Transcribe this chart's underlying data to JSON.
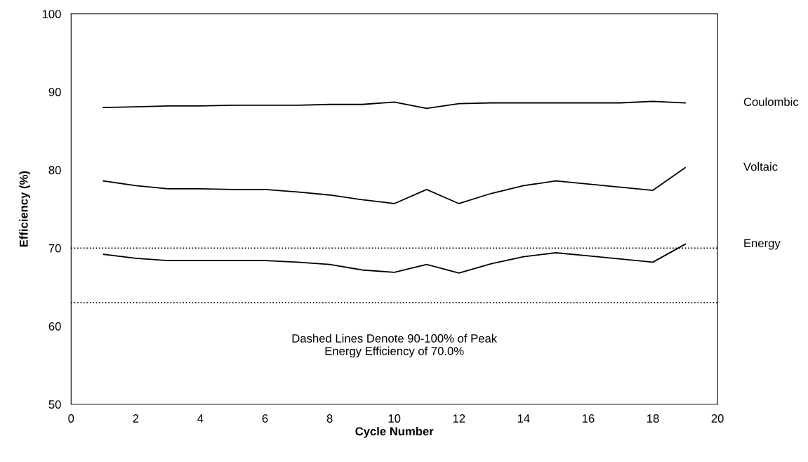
{
  "chart_data": {
    "type": "line",
    "xlabel": "Cycle Number",
    "ylabel": "Efficiency (%)",
    "x": [
      1,
      2,
      3,
      4,
      5,
      6,
      7,
      8,
      9,
      10,
      11,
      12,
      13,
      14,
      15,
      16,
      17,
      18,
      19
    ],
    "series": [
      {
        "name": "Coulombic",
        "color": "#000000",
        "values": [
          88.0,
          88.1,
          88.2,
          88.2,
          88.3,
          88.3,
          88.3,
          88.4,
          88.4,
          88.7,
          87.9,
          88.5,
          88.6,
          88.6,
          88.6,
          88.6,
          88.6,
          88.8,
          88.6
        ]
      },
      {
        "name": "Voltaic",
        "color": "#000000",
        "values": [
          78.6,
          78.0,
          77.6,
          77.6,
          77.5,
          77.5,
          77.2,
          76.8,
          76.2,
          75.7,
          77.5,
          75.7,
          77.0,
          78.0,
          78.6,
          78.2,
          77.8,
          77.4,
          80.3
        ]
      },
      {
        "name": "Energy",
        "color": "#000000",
        "values": [
          69.2,
          68.7,
          68.4,
          68.4,
          68.4,
          68.4,
          68.2,
          67.9,
          67.2,
          66.9,
          67.9,
          66.8,
          68.0,
          68.9,
          69.4,
          69.0,
          68.6,
          68.2,
          70.5
        ]
      }
    ],
    "xlim": [
      0,
      20
    ],
    "xticks": [
      0,
      2,
      4,
      6,
      8,
      10,
      12,
      14,
      16,
      18,
      20
    ],
    "ylim": [
      50,
      100
    ],
    "yticks": [
      50,
      60,
      70,
      80,
      90,
      100
    ],
    "ref_lines": [
      {
        "axis": "y",
        "value": 70,
        "color": "#000000",
        "line_style": "dotted"
      },
      {
        "axis": "y",
        "value": 63,
        "color": "#000000",
        "line_style": "dotted"
      }
    ],
    "annotations": [
      "Dashed Lines Denote 90-100% of Peak\nEnergy Efficiency of 70.0%"
    ],
    "grid": false,
    "legend": false,
    "marker": "none",
    "line_style": "solid"
  }
}
